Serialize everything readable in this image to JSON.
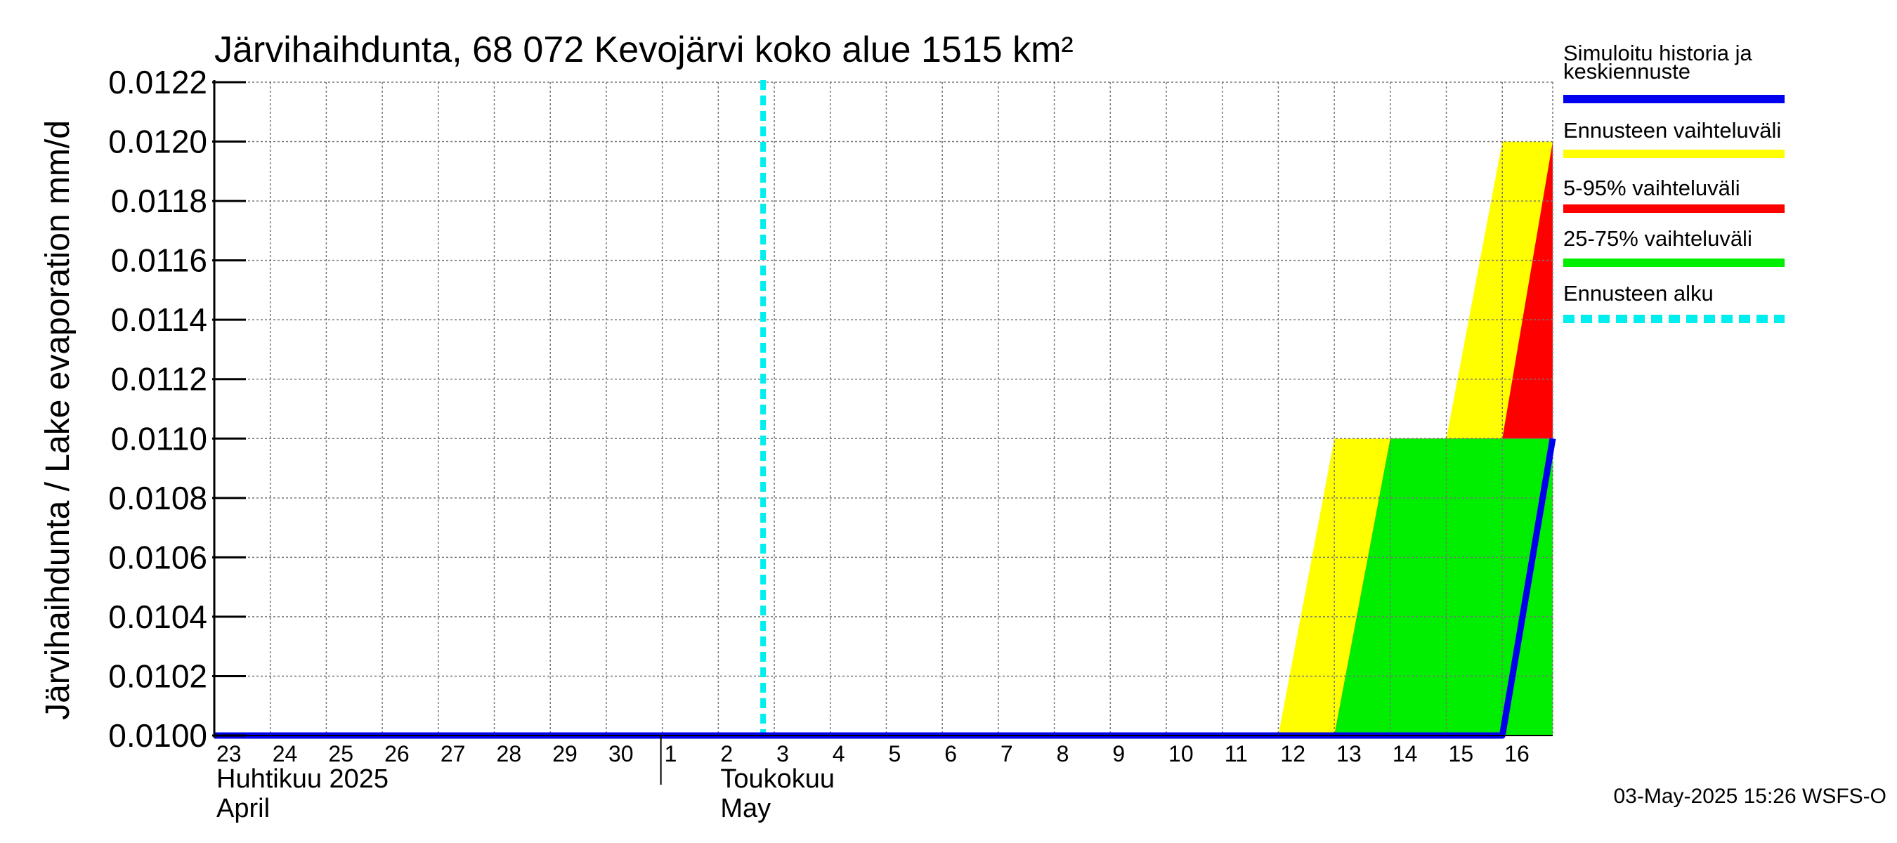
{
  "chart_data": {
    "type": "area",
    "title": "Järvihaihdunta, 68 072 Kevojärvi koko alue 1515 km²",
    "ylabel": "Järvihaihdunta / Lake evaporation   mm/d",
    "ylim": [
      0.01,
      0.0122
    ],
    "yticks": [
      "0.0100",
      "0.0102",
      "0.0104",
      "0.0106",
      "0.0108",
      "0.0110",
      "0.0112",
      "0.0114",
      "0.0116",
      "0.0118",
      "0.0120",
      "0.0122"
    ],
    "x_start_day": 23,
    "x_end_day": 46.9,
    "xticks": [
      {
        "label": "23",
        "day": 23
      },
      {
        "label": "24",
        "day": 24
      },
      {
        "label": "25",
        "day": 25
      },
      {
        "label": "26",
        "day": 26
      },
      {
        "label": "27",
        "day": 27
      },
      {
        "label": "28",
        "day": 28
      },
      {
        "label": "29",
        "day": 29
      },
      {
        "label": "30",
        "day": 30
      },
      {
        "label": "1",
        "day": 31
      },
      {
        "label": "2",
        "day": 32
      },
      {
        "label": "3",
        "day": 33
      },
      {
        "label": "4",
        "day": 34
      },
      {
        "label": "5",
        "day": 35
      },
      {
        "label": "6",
        "day": 36
      },
      {
        "label": "7",
        "day": 37
      },
      {
        "label": "8",
        "day": 38
      },
      {
        "label": "9",
        "day": 39
      },
      {
        "label": "10",
        "day": 40
      },
      {
        "label": "11",
        "day": 41
      },
      {
        "label": "12",
        "day": 42
      },
      {
        "label": "13",
        "day": 43
      },
      {
        "label": "14",
        "day": 44
      },
      {
        "label": "15",
        "day": 45
      },
      {
        "label": "16",
        "day": 46
      }
    ],
    "month_labels": [
      {
        "line1": "Huhtikuu  2025",
        "line2": "April",
        "day": 23
      },
      {
        "line1": "Toukokuu",
        "line2": "May",
        "day": 32
      }
    ],
    "month_divider_day": 31,
    "forecast_start_day": 32.8,
    "series": [
      {
        "name": "Ennusteen vaihteluväli",
        "color": "#ffff00",
        "type": "band",
        "lower": [
          [
            42,
            0.01
          ],
          [
            46.9,
            0.01
          ]
        ],
        "upper": [
          [
            42,
            0.01
          ],
          [
            43,
            0.011
          ],
          [
            45,
            0.011
          ],
          [
            46,
            0.012
          ],
          [
            46.9,
            0.012
          ]
        ]
      },
      {
        "name": "5-95% vaihteluväli",
        "color": "#ff0000",
        "type": "band",
        "lower": [
          [
            43,
            0.01
          ],
          [
            46.9,
            0.01
          ]
        ],
        "upper": [
          [
            43,
            0.01
          ],
          [
            44,
            0.011
          ],
          [
            46,
            0.011
          ],
          [
            46.9,
            0.012
          ]
        ]
      },
      {
        "name": "25-75% vaihteluväli",
        "color": "#00ee00",
        "type": "band",
        "lower": [
          [
            43,
            0.01
          ],
          [
            46.9,
            0.01
          ]
        ],
        "upper": [
          [
            43,
            0.01
          ],
          [
            44,
            0.011
          ],
          [
            46.9,
            0.011
          ]
        ]
      },
      {
        "name": "Simuloitu historia ja keskiennuste",
        "color": "#0000ee",
        "type": "line",
        "points": [
          [
            23,
            0.01
          ],
          [
            46,
            0.01
          ],
          [
            46.9,
            0.011
          ]
        ]
      }
    ]
  },
  "legend": {
    "items": [
      {
        "line1": "Simuloitu historia ja",
        "line2": "keskiennuste",
        "color": "#0000ee",
        "style": "solid"
      },
      {
        "line1": "Ennusteen vaihteluväli",
        "line2": "",
        "color": "#ffff00",
        "style": "solid"
      },
      {
        "line1": "5-95% vaihteluväli",
        "line2": "",
        "color": "#ff0000",
        "style": "solid"
      },
      {
        "line1": "25-75% vaihteluväli",
        "line2": "",
        "color": "#00ee00",
        "style": "solid"
      },
      {
        "line1": "Ennusteen alku",
        "line2": "",
        "color": "#00eeee",
        "style": "dashed"
      }
    ]
  },
  "footer": {
    "timestamp": "03-May-2025 15:26 WSFS-O"
  }
}
